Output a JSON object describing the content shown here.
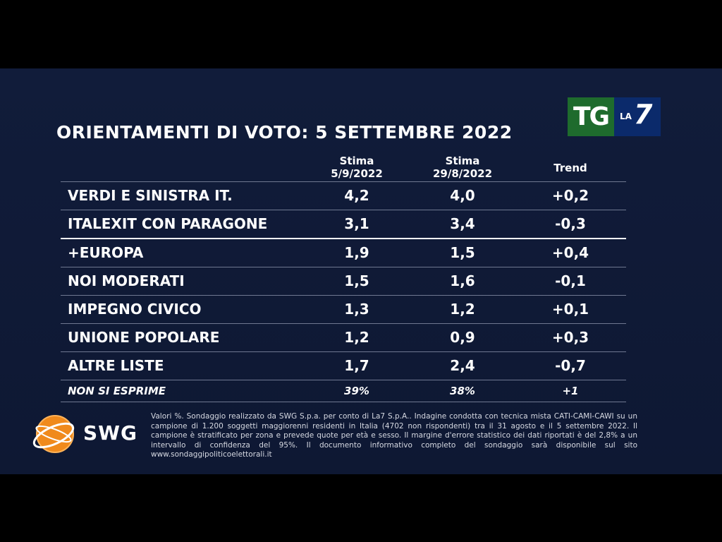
{
  "title": "ORIENTAMENTI DI VOTO: 5 SETTEMBRE 2022",
  "logo": {
    "tg": "TG",
    "la": "LA",
    "seven": "7"
  },
  "chart_data": {
    "type": "table",
    "title": "ORIENTAMENTI DI VOTO: 5 SETTEMBRE 2022",
    "columns": [
      {
        "line1": "Stima",
        "line2": "5/9/2022"
      },
      {
        "line1": "Stima",
        "line2": "29/8/2022"
      },
      {
        "line1": "Trend",
        "line2": ""
      }
    ],
    "rows": [
      {
        "name": "VERDI E SINISTRA IT.",
        "a": "4,2",
        "b": "4,0",
        "trend": "+0,2"
      },
      {
        "name": "ITALEXIT CON PARAGONE",
        "a": "3,1",
        "b": "3,4",
        "trend": "-0,3"
      },
      {
        "name": "+EUROPA",
        "a": "1,9",
        "b": "1,5",
        "trend": "+0,4"
      },
      {
        "name": "NOI MODERATI",
        "a": "1,5",
        "b": "1,6",
        "trend": "-0,1"
      },
      {
        "name": "IMPEGNO CIVICO",
        "a": "1,3",
        "b": "1,2",
        "trend": "+0,1"
      },
      {
        "name": "UNIONE POPOLARE",
        "a": "1,2",
        "b": "0,9",
        "trend": "+0,3"
      },
      {
        "name": "ALTRE LISTE",
        "a": "1,7",
        "b": "2,4",
        "trend": "-0,7"
      },
      {
        "name": "NON SI ESPRIME",
        "a": "39%",
        "b": "38%",
        "trend": "+1"
      }
    ]
  },
  "swg": {
    "label": "SWG"
  },
  "footnote": "Valori %. Sondaggio realizzato da SWG S.p.a. per conto di La7 S.p.A.. Indagine condotta con tecnica mista CATI-CAMI-CAWI su un campione di 1.200 soggetti maggiorenni residenti in Italia (4702 non rispondenti) tra il 31 agosto e il 5 settembre 2022. Il campione è stratificato per zona e prevede quote per età e sesso. Il margine d'errore statistico dei dati riportati è del 2,8% a un intervallo di confidenza del 95%. Il documento informativo completo del sondaggio sarà disponibile sul sito www.sondaggipoliticoelettorali.it",
  "colors": {
    "background": "#0f1a36",
    "tg_green": "#1e6b2d",
    "la7_blue": "#0b2a6b",
    "swg_orange": "#f08a1c"
  }
}
